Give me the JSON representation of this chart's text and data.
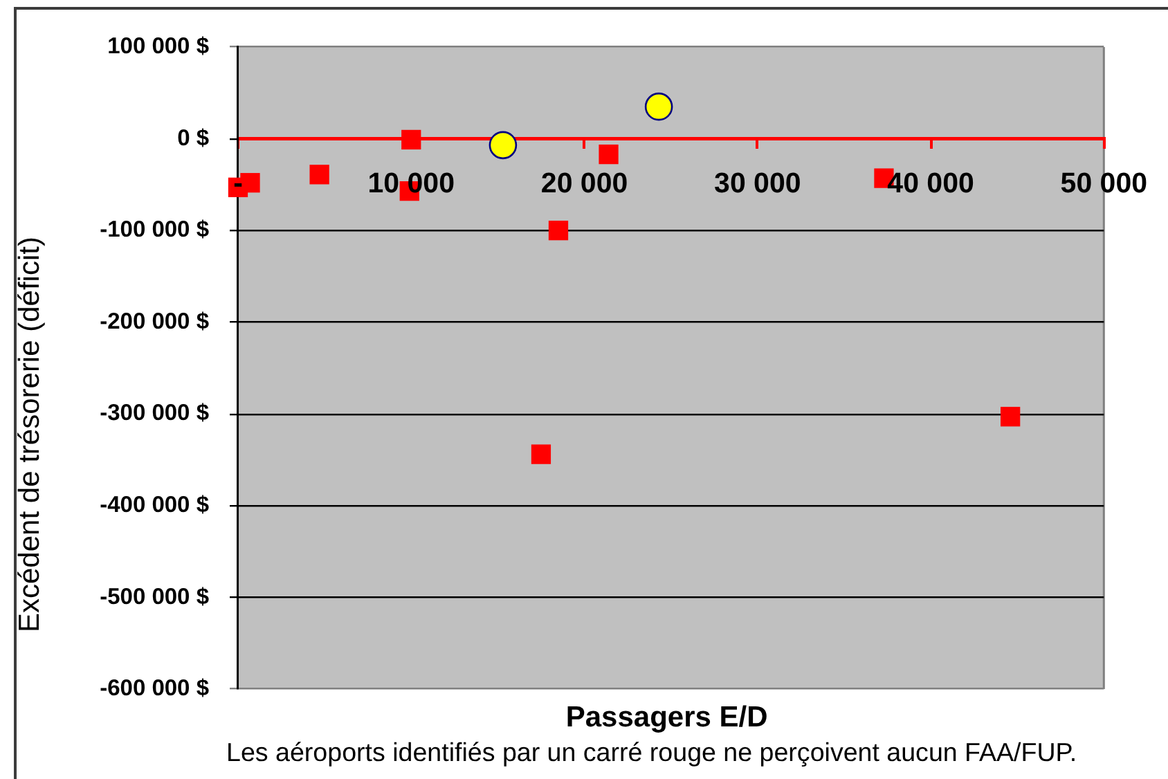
{
  "chart_data": {
    "type": "scatter",
    "xlabel": "Passagers E/D",
    "ylabel": "Excédent de trésorerie (déficit)",
    "annotations": [
      "Les aéroports identifiés par un carré rouge ne perçoivent aucun FAA/FUP."
    ],
    "xlim": [
      0,
      50000
    ],
    "ylim": [
      -600000,
      100000
    ],
    "xticks": [
      {
        "value": 0,
        "label": "-"
      },
      {
        "value": 10000,
        "label": "10 000"
      },
      {
        "value": 20000,
        "label": "20 000"
      },
      {
        "value": 30000,
        "label": "30 000"
      },
      {
        "value": 40000,
        "label": "40 000"
      },
      {
        "value": 50000,
        "label": "50 000"
      }
    ],
    "yticks": [
      {
        "value": 100000,
        "label": "100 000 $"
      },
      {
        "value": 0,
        "label": "0 $"
      },
      {
        "value": -100000,
        "label": "-100 000 $"
      },
      {
        "value": -200000,
        "label": "-200 000 $"
      },
      {
        "value": -300000,
        "label": "-300 000 $"
      },
      {
        "value": -400000,
        "label": "-400 000 $"
      },
      {
        "value": -500000,
        "label": "-500 000 $"
      },
      {
        "value": -600000,
        "label": "-600 000 $"
      }
    ],
    "grid": "y",
    "series": [
      {
        "color": "#ff0000",
        "marker": "square",
        "x": [
          0,
          700,
          4700,
          10000,
          9900,
          17500,
          18500,
          21400,
          37300,
          44600
        ],
        "values": [
          -53000,
          -48000,
          -39000,
          -1000,
          -57000,
          -344000,
          -100000,
          -17000,
          -43000,
          -303000
        ]
      },
      {
        "color": "#ffff00",
        "marker": "circle",
        "x": [
          15300,
          24300
        ],
        "values": [
          -7000,
          35000
        ]
      }
    ]
  }
}
